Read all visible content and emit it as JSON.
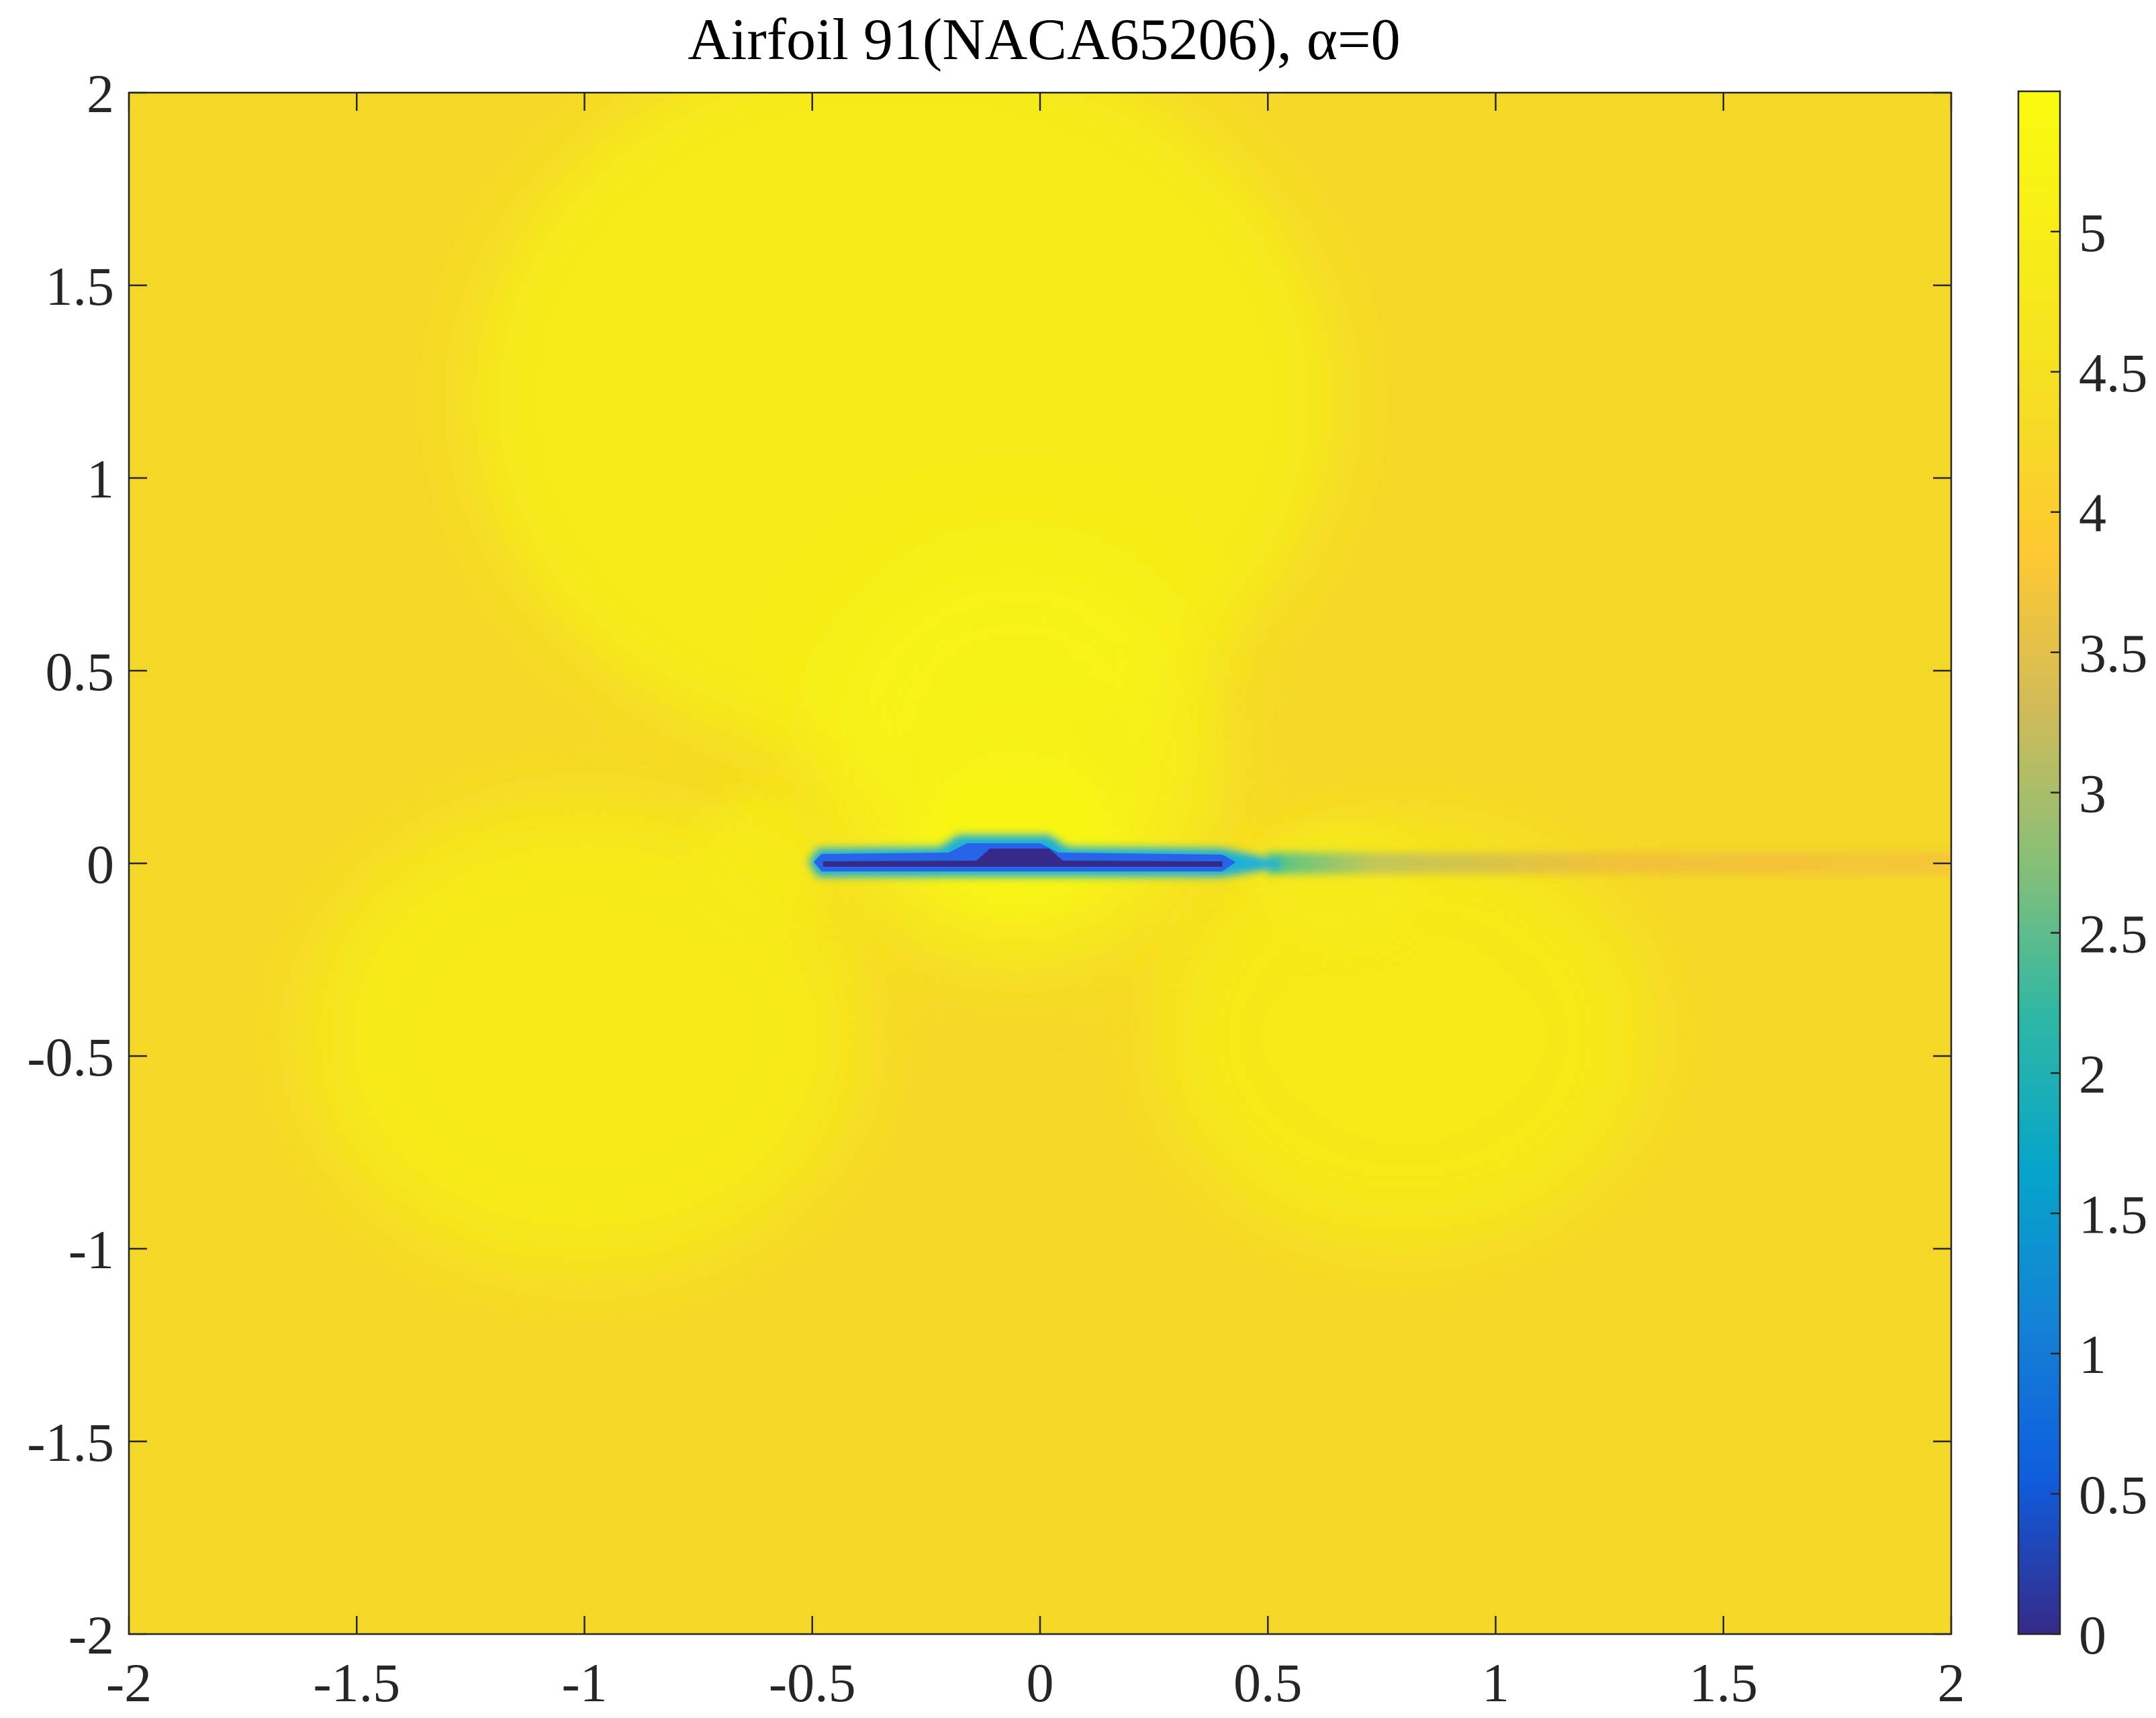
{
  "chart_data": {
    "type": "heatmap",
    "title": "Airfoil 91(NACA65206), α=0",
    "xlabel": "",
    "ylabel": "",
    "xlim": [
      -2,
      2
    ],
    "ylim": [
      -2,
      2
    ],
    "x_ticks": [
      -2,
      -1.5,
      -1,
      -0.5,
      0,
      0.5,
      1,
      1.5,
      2
    ],
    "y_ticks": [
      -2,
      -1.5,
      -1,
      -0.5,
      0,
      0.5,
      1,
      1.5,
      2
    ],
    "x_tick_labels": [
      "-2",
      "-1.5",
      "-1",
      "-0.5",
      "0",
      "0.5",
      "1",
      "1.5",
      "2"
    ],
    "y_tick_labels": [
      "-2",
      "-1.5",
      "-1",
      "-0.5",
      "0",
      "0.5",
      "1",
      "1.5",
      "2"
    ],
    "colorbar": {
      "range": [
        0,
        5.5
      ],
      "ticks": [
        0,
        0.5,
        1,
        1.5,
        2,
        2.5,
        3,
        3.5,
        4,
        4.5,
        5
      ],
      "tick_labels": [
        "0",
        "0.5",
        "1",
        "1.5",
        "2",
        "2.5",
        "3",
        "3.5",
        "4",
        "4.5",
        "5"
      ],
      "colormap": "parula"
    },
    "field": {
      "freestream_value": 5.0,
      "max_value": 5.5,
      "min_value": 0,
      "airfoil": {
        "name": "NACA65206",
        "leading_edge_x": -0.5,
        "trailing_edge_x": 0.5,
        "chord_y": 0
      },
      "features": [
        {
          "name": "suction-peak",
          "x": -0.05,
          "y": 0.1,
          "value": 5.5
        },
        {
          "name": "stagnation-region",
          "x": -0.62,
          "y": 0.0,
          "value": 4.8
        },
        {
          "name": "upper-lobe",
          "x": -0.3,
          "y": 1.2,
          "value": 5.05
        },
        {
          "name": "lower-left-lobe",
          "x": -1.0,
          "y": -0.45,
          "value": 4.92
        },
        {
          "name": "lower-right-lobe",
          "x": 0.8,
          "y": -0.45,
          "value": 4.9
        },
        {
          "name": "trailing-lobe",
          "x": 0.65,
          "y": -0.05,
          "value": 4.85
        },
        {
          "name": "wake",
          "x_range": [
            0.5,
            2.0
          ],
          "y": 0,
          "value": 4.7
        }
      ]
    }
  }
}
